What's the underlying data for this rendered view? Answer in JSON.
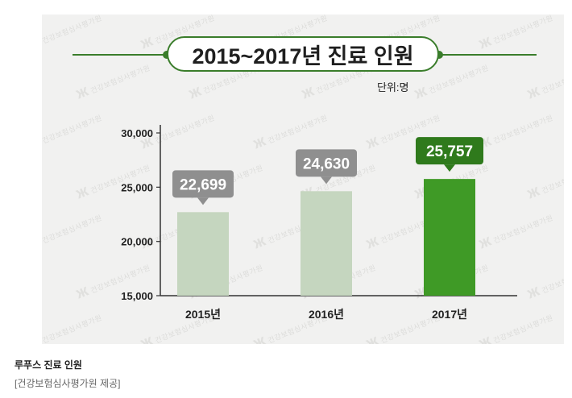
{
  "title": "2015~2017년 진료 인원",
  "unit_label": "단위:명",
  "watermark_text": "건강보험심사평가원",
  "caption": {
    "title": "루푸스 진료 인원",
    "source": "[건강보험심사평가원 제공]"
  },
  "colors": {
    "accent": "#3a7d2b",
    "bar_muted": "#c5d6bf",
    "bar_highlight": "#3f9a26",
    "label_muted": "#8f8f8f",
    "label_highlight": "#2f7a1c"
  },
  "chart_data": {
    "type": "bar",
    "categories": [
      "2015년",
      "2016년",
      "2017년"
    ],
    "values": [
      22699,
      24630,
      25757
    ],
    "value_labels": [
      "22,699",
      "24,630",
      "25,757"
    ],
    "highlight_index": 2,
    "ylim": [
      15000,
      30000
    ],
    "yticks": [
      15000,
      20000,
      25000,
      30000
    ],
    "ytick_labels": [
      "15,000",
      "20,000",
      "25,000",
      "30,000"
    ],
    "title": "2015~2017년 진료 인원",
    "xlabel": "",
    "ylabel": "",
    "grid": false,
    "legend": "none"
  }
}
